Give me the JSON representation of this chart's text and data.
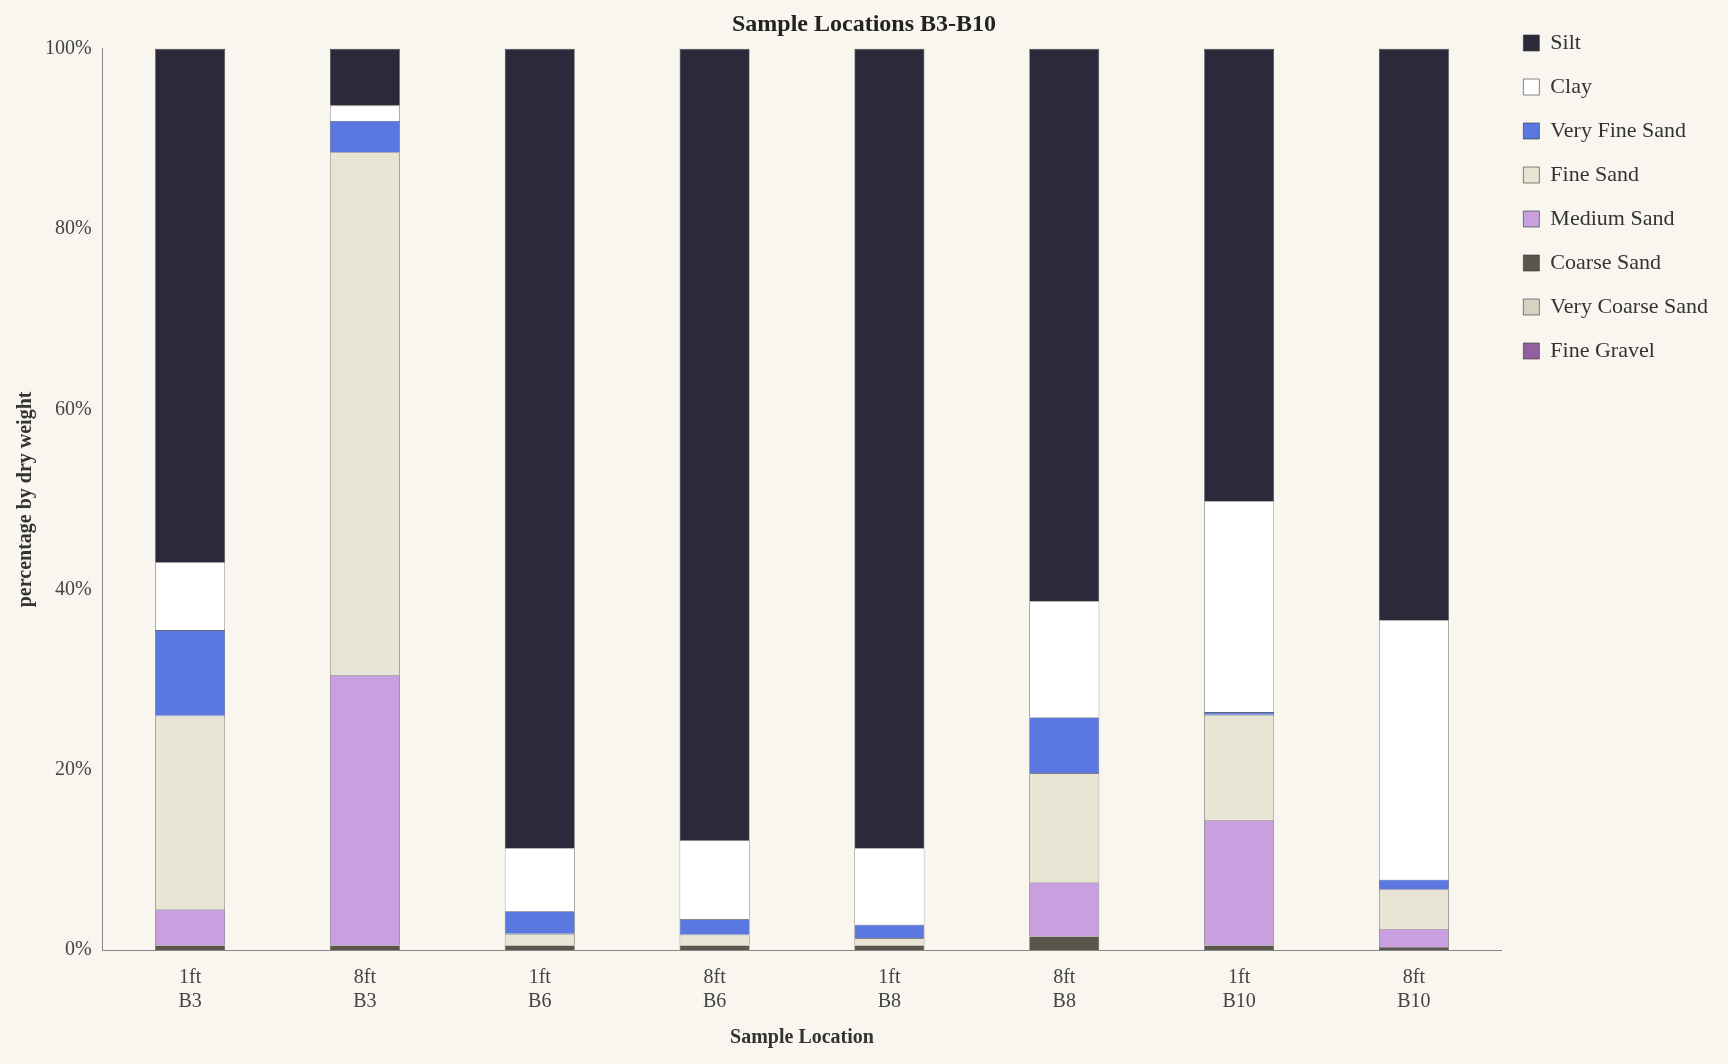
{
  "chart_data": {
    "type": "bar",
    "stacked": true,
    "title": "Sample Locations B3-B10",
    "xlabel": "Sample Location",
    "ylabel": "percentage by dry weight",
    "categories": [
      "1ft\nB3",
      "8ft\nB3",
      "1ft\nB6",
      "8ft\nB6",
      "1ft\nB8",
      "8ft\nB8",
      "1ft\nB10",
      "8ft\nB10"
    ],
    "series": [
      {
        "name": "Fine Gravel",
        "color": "#9060a0",
        "values": [
          0,
          0,
          0,
          0,
          0,
          0,
          0,
          0
        ]
      },
      {
        "name": "Very Coarse Sand",
        "color": "#d6d3c2",
        "values": [
          0,
          0,
          0,
          0,
          0,
          0,
          0,
          0
        ]
      },
      {
        "name": "Coarse Sand",
        "color": "#5a564c",
        "values": [
          0.5,
          0.5,
          0.5,
          0.5,
          0.5,
          1.5,
          0.5,
          0.3
        ]
      },
      {
        "name": "Medium Sand",
        "color": "#c8a0e0",
        "values": [
          4,
          30,
          0,
          0,
          0,
          6,
          13.9,
          2
        ]
      },
      {
        "name": "Fine Sand",
        "color": "#e8e5d5",
        "values": [
          21.5,
          58,
          1.3,
          1.2,
          0.8,
          12.1,
          11.7,
          4.4
        ]
      },
      {
        "name": "Very Fine Sand",
        "color": "#5a78e0",
        "values": [
          9.5,
          3.5,
          2.5,
          1.7,
          1.5,
          6.2,
          0.3,
          1.1
        ]
      },
      {
        "name": "Clay",
        "color": "#ffffff",
        "values": [
          7.5,
          1.7,
          7,
          8.8,
          8.5,
          12.9,
          23.4,
          28.8
        ]
      },
      {
        "name": "Silt",
        "color": "#2a2a3a",
        "values": [
          57,
          6.3,
          88.7,
          87.8,
          88.7,
          61.3,
          50.2,
          63.4
        ]
      }
    ],
    "ylim": [
      0,
      100
    ],
    "yticks": [
      {
        "value": 0,
        "label": "0%"
      },
      {
        "value": 20,
        "label": "20%"
      },
      {
        "value": 40,
        "label": "40%"
      },
      {
        "value": 60,
        "label": "60%"
      },
      {
        "value": 80,
        "label": "80%"
      },
      {
        "value": 100,
        "label": "100%"
      }
    ],
    "grid": false,
    "legend": "top right"
  }
}
